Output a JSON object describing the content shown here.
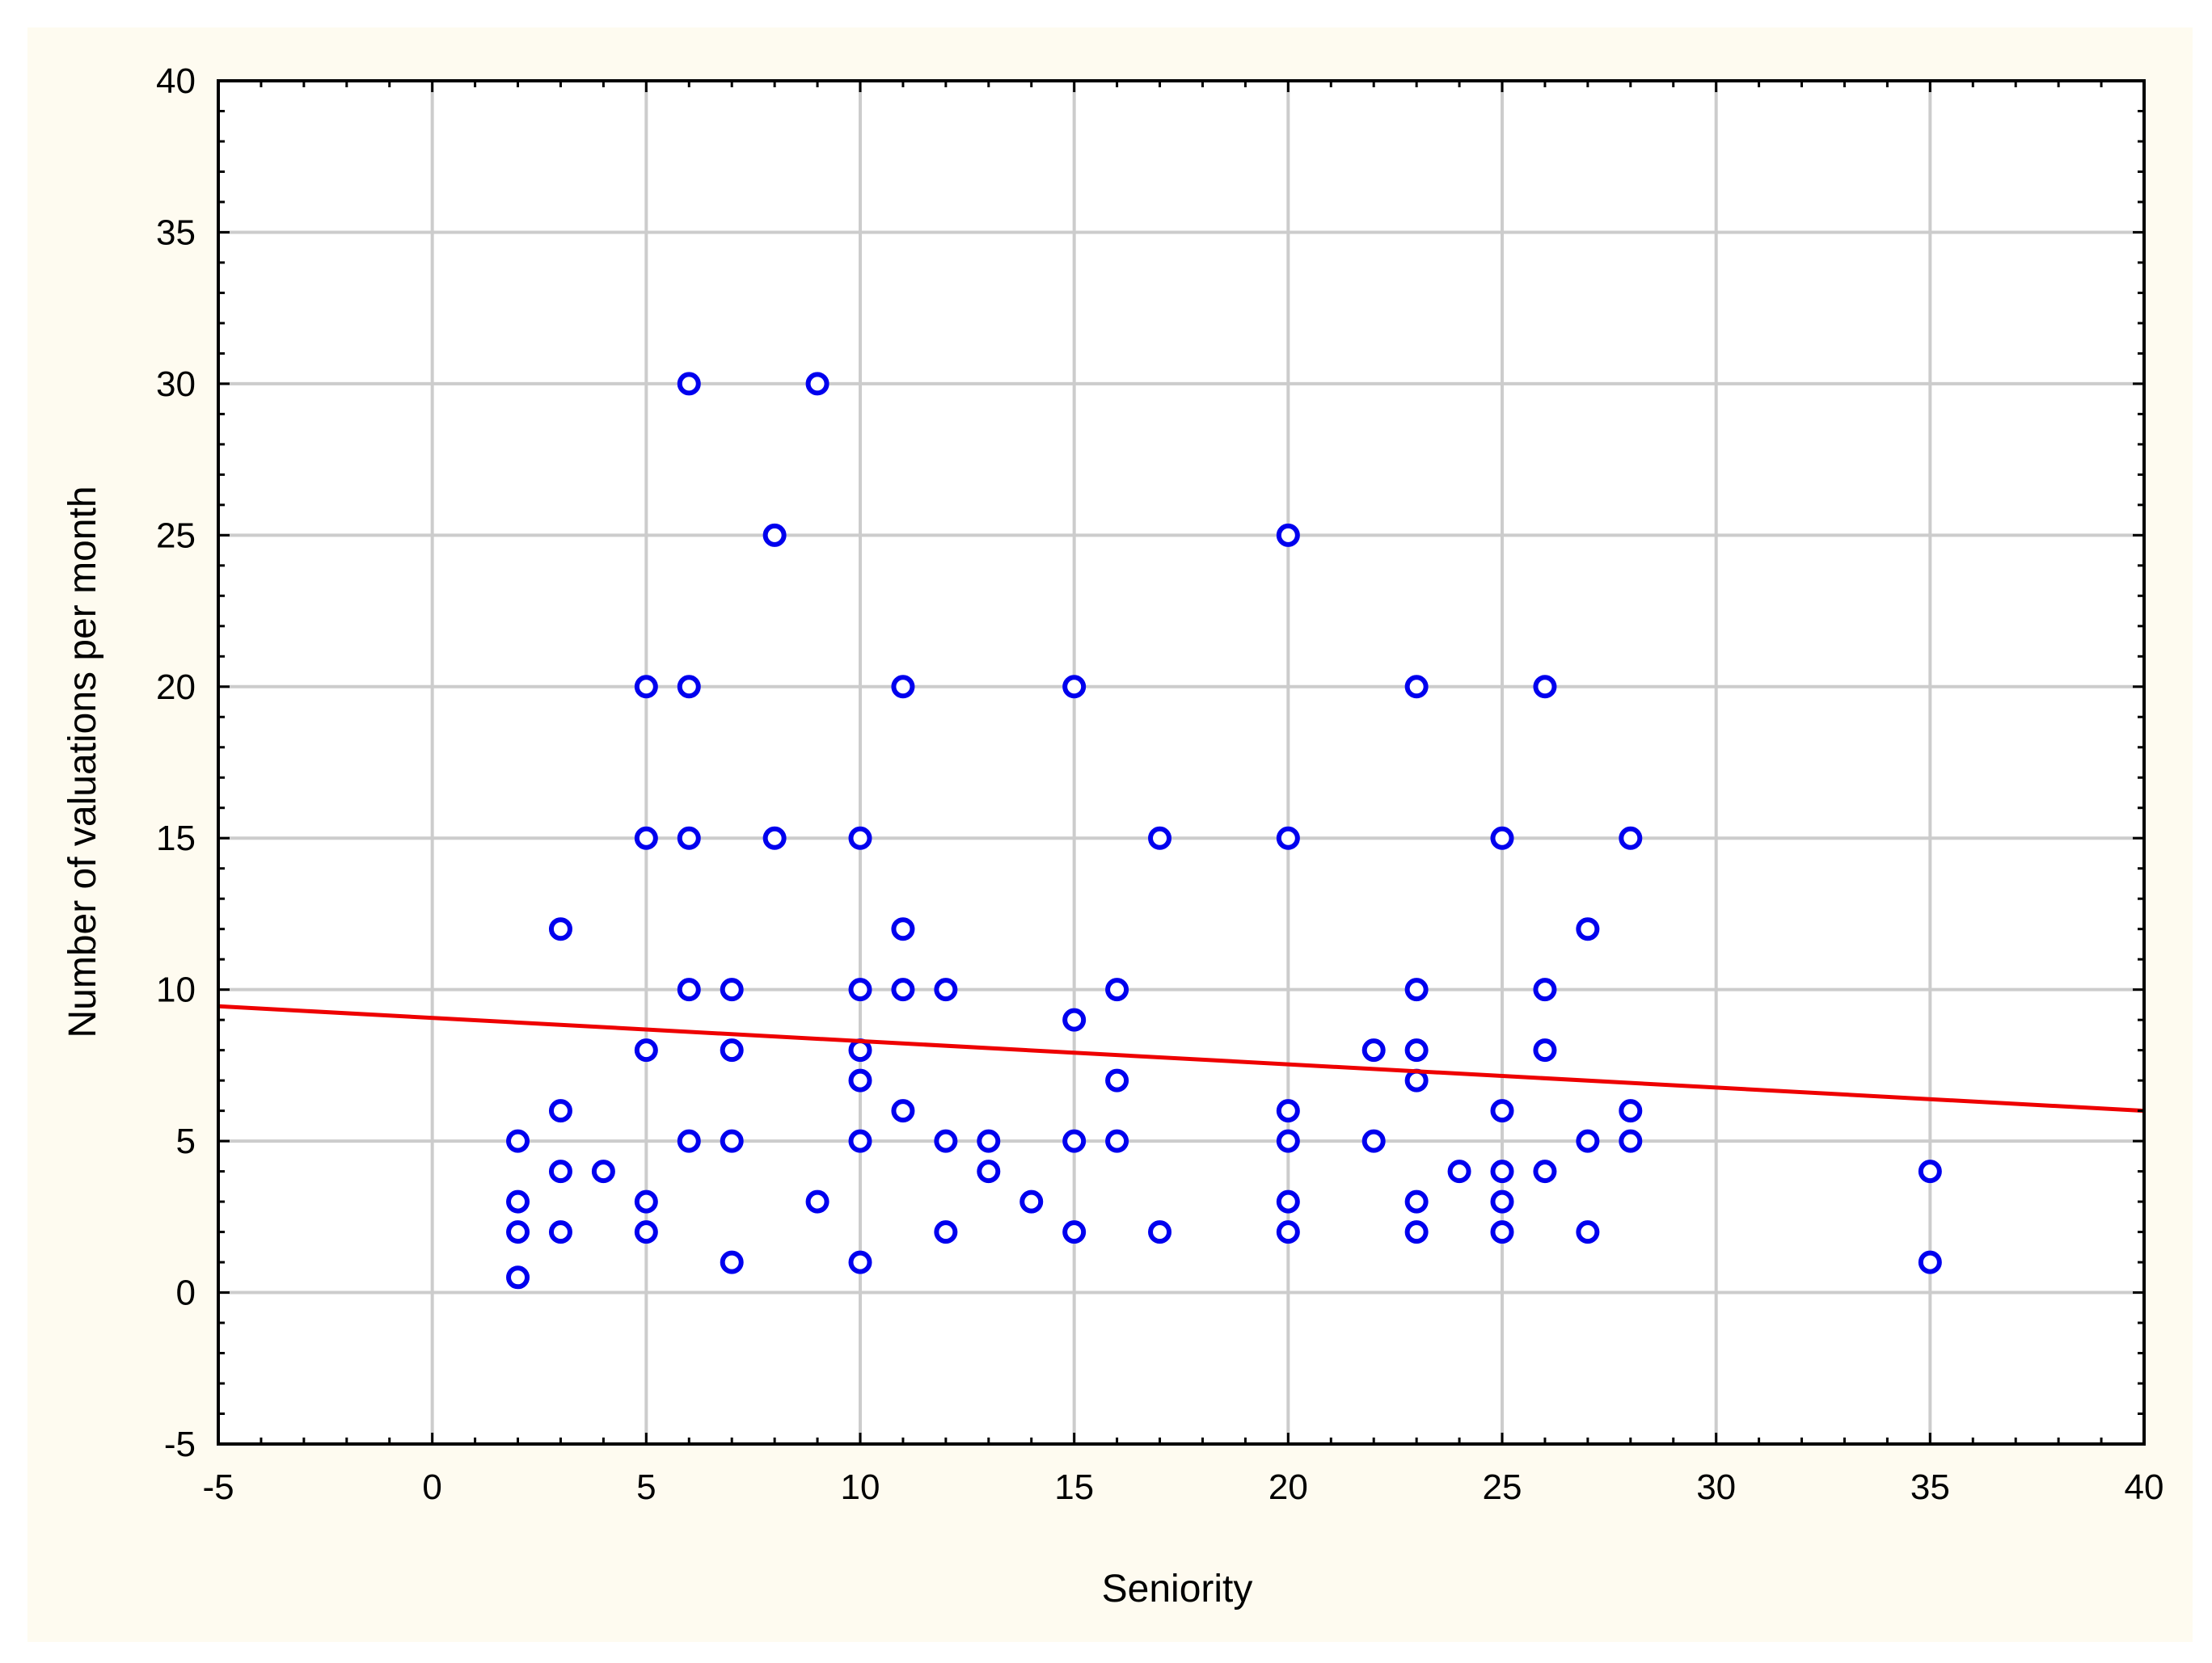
{
  "chart_data": {
    "type": "scatter",
    "title": "",
    "xlabel": "Seniority",
    "ylabel": "Number of valuations per month",
    "xlim": [
      -5,
      40
    ],
    "ylim": [
      -5,
      40
    ],
    "xticks": [
      "-5",
      "0",
      "5",
      "10",
      "15",
      "20",
      "25",
      "30",
      "35",
      "40"
    ],
    "yticks": [
      "-5",
      "0",
      "5",
      "10",
      "15",
      "20",
      "25",
      "30",
      "35",
      "40"
    ],
    "grid": true,
    "legend": "none",
    "colors": {
      "marker": "#0000ee",
      "fit_line": "#ee0000",
      "grid": "#cccccc",
      "frame_background": "#fefbf0",
      "plot_background": "#ffffff"
    },
    "series": [
      {
        "marker": "open-circle",
        "points": [
          [
            2,
            5
          ],
          [
            2,
            3
          ],
          [
            2,
            2
          ],
          [
            2,
            0.5
          ],
          [
            3,
            12
          ],
          [
            3,
            6
          ],
          [
            3,
            4
          ],
          [
            3,
            2
          ],
          [
            4,
            4
          ],
          [
            5,
            20
          ],
          [
            5,
            15
          ],
          [
            5,
            8
          ],
          [
            5,
            3
          ],
          [
            5,
            2
          ],
          [
            6,
            30
          ],
          [
            6,
            20
          ],
          [
            6,
            15
          ],
          [
            6,
            10
          ],
          [
            6,
            5
          ],
          [
            7,
            10
          ],
          [
            7,
            8
          ],
          [
            7,
            5
          ],
          [
            7,
            1
          ],
          [
            8,
            25
          ],
          [
            8,
            15
          ],
          [
            9,
            30
          ],
          [
            9,
            3
          ],
          [
            10,
            15
          ],
          [
            10,
            10
          ],
          [
            10,
            8
          ],
          [
            10,
            7
          ],
          [
            10,
            5
          ],
          [
            10,
            1
          ],
          [
            11,
            20
          ],
          [
            11,
            12
          ],
          [
            11,
            10
          ],
          [
            11,
            6
          ],
          [
            12,
            10
          ],
          [
            12,
            5
          ],
          [
            12,
            2
          ],
          [
            13,
            5
          ],
          [
            13,
            4
          ],
          [
            14,
            3
          ],
          [
            15,
            20
          ],
          [
            15,
            9
          ],
          [
            15,
            5
          ],
          [
            15,
            2
          ],
          [
            16,
            10
          ],
          [
            16,
            7
          ],
          [
            16,
            5
          ],
          [
            17,
            15
          ],
          [
            17,
            2
          ],
          [
            20,
            25
          ],
          [
            20,
            15
          ],
          [
            20,
            6
          ],
          [
            20,
            5
          ],
          [
            20,
            3
          ],
          [
            20,
            2
          ],
          [
            22,
            8
          ],
          [
            22,
            5
          ],
          [
            23,
            20
          ],
          [
            23,
            10
          ],
          [
            23,
            8
          ],
          [
            23,
            7
          ],
          [
            23,
            3
          ],
          [
            23,
            2
          ],
          [
            24,
            4
          ],
          [
            25,
            15
          ],
          [
            25,
            6
          ],
          [
            25,
            4
          ],
          [
            25,
            3
          ],
          [
            25,
            2
          ],
          [
            26,
            20
          ],
          [
            26,
            10
          ],
          [
            26,
            8
          ],
          [
            26,
            4
          ],
          [
            27,
            12
          ],
          [
            27,
            5
          ],
          [
            27,
            2
          ],
          [
            28,
            15
          ],
          [
            28,
            6
          ],
          [
            28,
            5
          ],
          [
            35,
            4
          ],
          [
            35,
            1
          ]
        ]
      }
    ],
    "fit_line": {
      "x": [
        -5,
        40
      ],
      "y": [
        9.45,
        6.0
      ]
    }
  }
}
